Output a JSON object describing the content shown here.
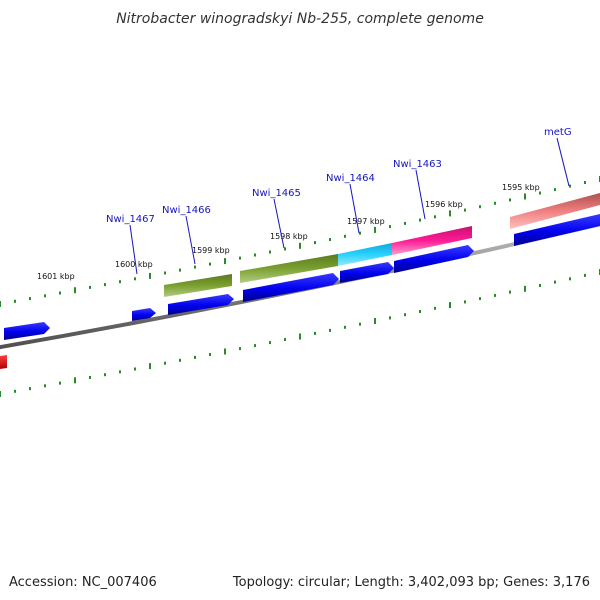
{
  "title": "Nitrobacter winogradskyi Nb-255, complete genome",
  "footer": {
    "accession": "Accession: NC_007406",
    "summary": "Topology: circular; Length: 3,402,093 bp; Genes: 3,176"
  },
  "scale_labels": [
    "1601 kbp",
    "1600 kbp",
    "1599 kbp",
    "1598 kbp",
    "1597 kbp",
    "1596 kbp",
    "1595 kbp"
  ],
  "gene_labels": [
    "Nwi_1467",
    "Nwi_1466",
    "Nwi_1465",
    "Nwi_1464",
    "Nwi_1463",
    "metG"
  ],
  "colors": {
    "backbone": "#808080",
    "tick": "#2a8a2a",
    "cds": "#0000ee",
    "olive": "#6b8e23",
    "cyan": "#1ec8f0",
    "magenta": "#f0178c",
    "salmon": "#f08080",
    "red": "#ee1111",
    "label": "#1515c0"
  }
}
